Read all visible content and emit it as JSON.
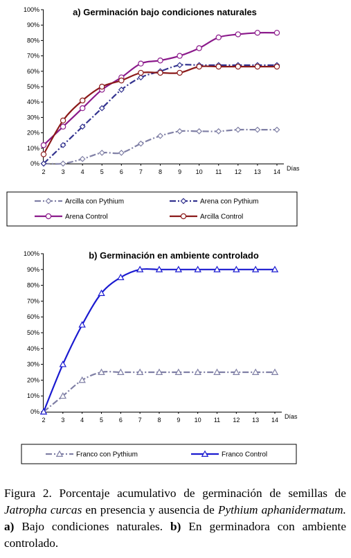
{
  "charts": [
    {
      "chart_data": {
        "type": "line",
        "title": "a) Germinación bajo condiciones naturales",
        "xlabel": "Días",
        "ylabel": "",
        "x": [
          2,
          3,
          4,
          5,
          6,
          7,
          8,
          9,
          10,
          11,
          12,
          13,
          14
        ],
        "ylim": [
          0,
          100
        ],
        "yticks": [
          0,
          10,
          20,
          30,
          40,
          50,
          60,
          70,
          80,
          90,
          100
        ],
        "ytick_labels": [
          "0%",
          "10%",
          "20%",
          "30%",
          "40%",
          "50%",
          "60%",
          "70%",
          "80%",
          "90%",
          "100%"
        ],
        "grid": false,
        "legend_position": "bottom",
        "series": [
          {
            "name": "Arcilla con Pythium",
            "color": "#7f7fa5",
            "marker": "diamond",
            "dash": "dashdot",
            "values": [
              0,
              0,
              3,
              7,
              7,
              13,
              18,
              21,
              21,
              21,
              22,
              22,
              22
            ]
          },
          {
            "name": "Arena con Pythium",
            "color": "#33338f",
            "marker": "diamond",
            "dash": "dashdot",
            "values": [
              0,
              12,
              24,
              36,
              48,
              56,
              60,
              64,
              64,
              64,
              64,
              64,
              64
            ]
          },
          {
            "name": "Arena Control",
            "color": "#8b1a8b",
            "marker": "circle",
            "dash": "solid",
            "values": [
              12,
              24,
              36,
              48,
              56,
              65,
              67,
              70,
              75,
              82,
              84,
              85,
              85
            ]
          },
          {
            "name": "Arcilla Control",
            "color": "#8b1a1a",
            "marker": "circle",
            "dash": "solid",
            "values": [
              6,
              28,
              41,
              50,
              54,
              59,
              59,
              59,
              63,
              63,
              63,
              63,
              63
            ]
          }
        ]
      }
    },
    {
      "chart_data": {
        "type": "line",
        "title": "b) Germinación en ambiente controlado",
        "xlabel": "Días",
        "ylabel": "",
        "x": [
          2,
          3,
          4,
          5,
          6,
          7,
          8,
          9,
          10,
          11,
          12,
          13,
          14
        ],
        "ylim": [
          0,
          100
        ],
        "yticks": [
          0,
          10,
          20,
          30,
          40,
          50,
          60,
          70,
          80,
          90,
          100
        ],
        "ytick_labels": [
          "0%",
          "10%",
          "20%",
          "30%",
          "40%",
          "50%",
          "60%",
          "70%",
          "80%",
          "90%",
          "100%"
        ],
        "grid": false,
        "legend_position": "bottom",
        "series": [
          {
            "name": "Franco con Pythium",
            "color": "#7f7fa5",
            "marker": "triangle",
            "dash": "dashdot",
            "values": [
              0,
              10,
              20,
              25,
              25,
              25,
              25,
              25,
              25,
              25,
              25,
              25,
              25
            ]
          },
          {
            "name": "Franco Control",
            "color": "#1a1ad0",
            "marker": "triangle",
            "dash": "solid",
            "values": [
              0,
              30,
              55,
              75,
              85,
              90,
              90,
              90,
              90,
              90,
              90,
              90,
              90
            ]
          }
        ]
      }
    }
  ],
  "caption": {
    "label": "Figura 2.",
    "text1": " Porcentaje acumulativo de germinación de semillas de ",
    "species1": "Jatropha curcas",
    "text2": " en presencia y ausencia de ",
    "species2": "Pythium aphanidermatum.",
    "part_a_label": "a)",
    "part_a_text": " Bajo condiciones naturales. ",
    "part_b_label": "b)",
    "part_b_text": " En germinadora con ambiente controlado."
  }
}
